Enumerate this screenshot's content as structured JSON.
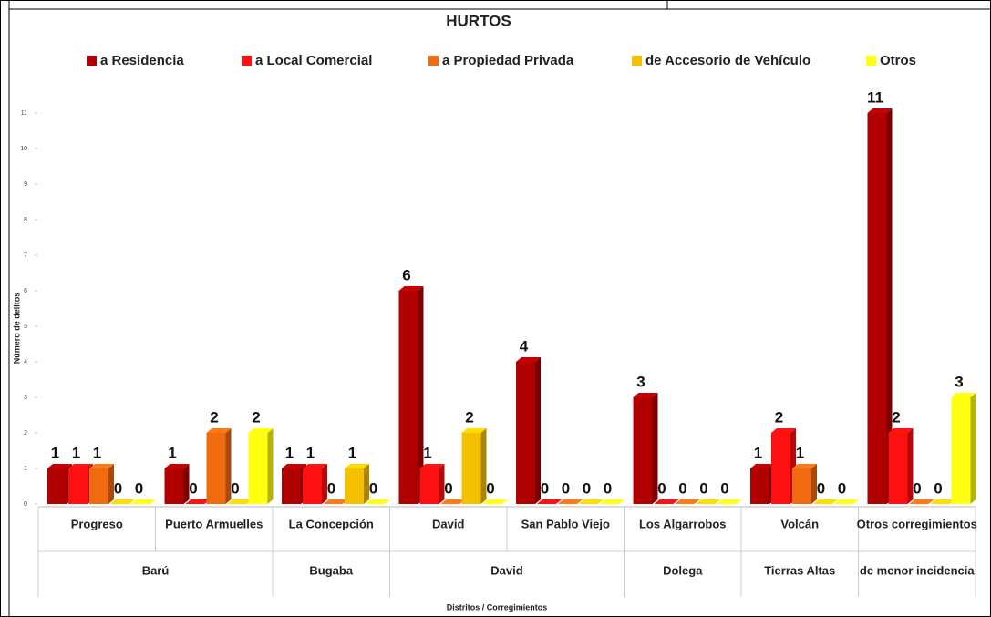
{
  "chart_data": {
    "type": "bar3d",
    "title": "HURTOS",
    "x_label": "Distritos / Corregimientos",
    "y_label": "Número de delitos",
    "categories": [
      "Progreso",
      "Puerto Armuelles",
      "La Concepción",
      "David",
      "San Pablo Viejo",
      "Los Algarrobos",
      "Volcán",
      "Otros corregimientos"
    ],
    "districts": [
      "Barú",
      null,
      "Bugaba",
      "David",
      null,
      "Dolega",
      "Tierras Altas",
      "de menor incidencia"
    ],
    "series": [
      {
        "name": "a Residencia",
        "color": "#b00000",
        "values": [
          1,
          1,
          1,
          6,
          4,
          3,
          1,
          11
        ]
      },
      {
        "name": "a Local Comercial",
        "color": "#ff1010",
        "values": [
          1,
          0,
          1,
          1,
          0,
          0,
          2,
          2
        ]
      },
      {
        "name": "a Propiedad Privada",
        "color": "#f06a10",
        "values": [
          1,
          2,
          0,
          0,
          0,
          0,
          1,
          0
        ]
      },
      {
        "name": "de Accesorio de Vehículo",
        "color": "#f5c000",
        "values": [
          0,
          0,
          1,
          2,
          0,
          0,
          0,
          0
        ]
      },
      {
        "name": "Otros",
        "color": "#ffff10",
        "values": [
          0,
          2,
          0,
          0,
          0,
          0,
          0,
          3
        ]
      }
    ],
    "ylim": [
      0,
      11
    ],
    "yticks": [
      0,
      1,
      2,
      3,
      4,
      5,
      6,
      7,
      8,
      9,
      10,
      11
    ]
  }
}
